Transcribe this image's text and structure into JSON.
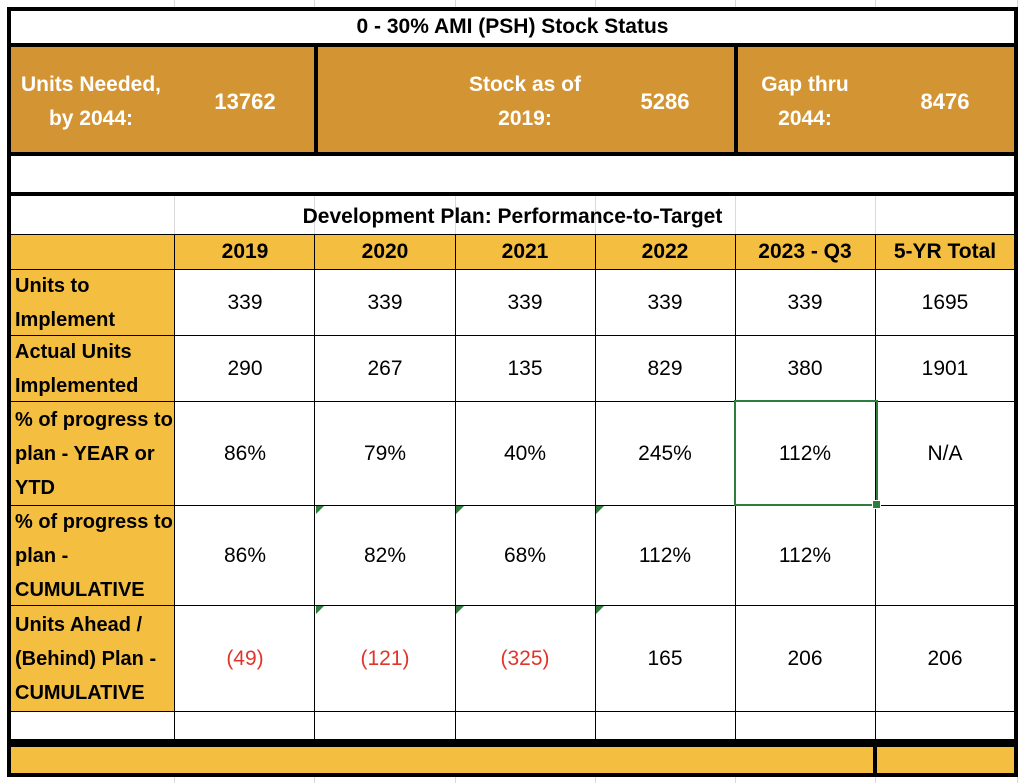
{
  "title": "0 - 30% AMI (PSH) Stock Status",
  "stats": {
    "units_needed_label": "Units Needed, by 2044:",
    "units_needed_value": "13762",
    "stock_label": "Stock as of 2019:",
    "stock_value": "5286",
    "gap_label": "Gap thru 2044:",
    "gap_value": "8476"
  },
  "plan": {
    "title": "Development Plan:  Performance-to-Target",
    "headers": [
      "2019",
      "2020",
      "2021",
      "2022",
      "2023 - Q3",
      "5-YR Total"
    ],
    "rows": [
      {
        "label": "Units to Implement",
        "values": [
          "339",
          "339",
          "339",
          "339",
          "339",
          "1695"
        ]
      },
      {
        "label": "Actual Units Implemented",
        "values": [
          "290",
          "267",
          "135",
          "829",
          "380",
          "1901"
        ]
      },
      {
        "label": "% of progress to plan - YEAR or YTD",
        "values": [
          "86%",
          "79%",
          "40%",
          "245%",
          "112%",
          "N/A"
        ]
      },
      {
        "label": "% of progress to plan - CUMULATIVE",
        "values": [
          "86%",
          "82%",
          "68%",
          "112%",
          "112%",
          ""
        ]
      },
      {
        "label": "Units Ahead / (Behind) Plan - CUMULATIVE",
        "values": [
          "(49)",
          "(121)",
          "(325)",
          "165",
          "206",
          "206"
        ]
      }
    ]
  },
  "colors": {
    "stat_band": "#d39533",
    "header_fill": "#f4be41",
    "negative_text": "#e0352b",
    "selection_border": "#2f7d3c"
  }
}
